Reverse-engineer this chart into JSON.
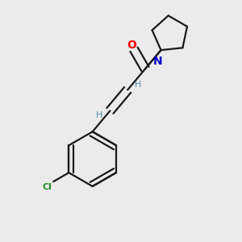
{
  "background_color": "#ebebeb",
  "bond_color": "#1a1a1a",
  "oxygen_color": "#ff0000",
  "nitrogen_color": "#0000cc",
  "chlorine_color": "#228B22",
  "h_color": "#4a8fa8",
  "line_width": 1.6,
  "figsize": [
    3.0,
    3.0
  ],
  "dpi": 100,
  "xlim": [
    0,
    1
  ],
  "ylim": [
    0,
    1
  ]
}
